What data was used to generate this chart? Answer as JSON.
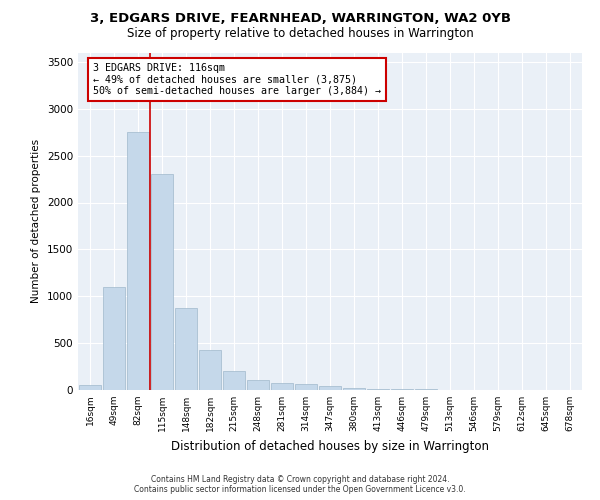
{
  "title": "3, EDGARS DRIVE, FEARNHEAD, WARRINGTON, WA2 0YB",
  "subtitle": "Size of property relative to detached houses in Warrington",
  "xlabel": "Distribution of detached houses by size in Warrington",
  "ylabel": "Number of detached properties",
  "categories": [
    "16sqm",
    "49sqm",
    "82sqm",
    "115sqm",
    "148sqm",
    "182sqm",
    "215sqm",
    "248sqm",
    "281sqm",
    "314sqm",
    "347sqm",
    "380sqm",
    "413sqm",
    "446sqm",
    "479sqm",
    "513sqm",
    "546sqm",
    "579sqm",
    "612sqm",
    "645sqm",
    "678sqm"
  ],
  "values": [
    55,
    1100,
    2750,
    2300,
    880,
    430,
    200,
    110,
    80,
    60,
    40,
    25,
    15,
    10,
    8,
    5,
    3,
    2,
    1,
    1,
    0
  ],
  "bar_color": "#c5d8ea",
  "bar_edge_color": "#a0b8cc",
  "vline_label": "3 EDGARS DRIVE: 116sqm",
  "annotation_line1": "← 49% of detached houses are smaller (3,875)",
  "annotation_line2": "50% of semi-detached houses are larger (3,884) →",
  "annotation_box_color": "#ffffff",
  "annotation_box_edge": "#cc0000",
  "vline_color": "#cc0000",
  "ylim": [
    0,
    3600
  ],
  "yticks": [
    0,
    500,
    1000,
    1500,
    2000,
    2500,
    3000,
    3500
  ],
  "background_color": "#eaf0f7",
  "grid_color": "#ffffff",
  "footer_line1": "Contains HM Land Registry data © Crown copyright and database right 2024.",
  "footer_line2": "Contains public sector information licensed under the Open Government Licence v3.0."
}
